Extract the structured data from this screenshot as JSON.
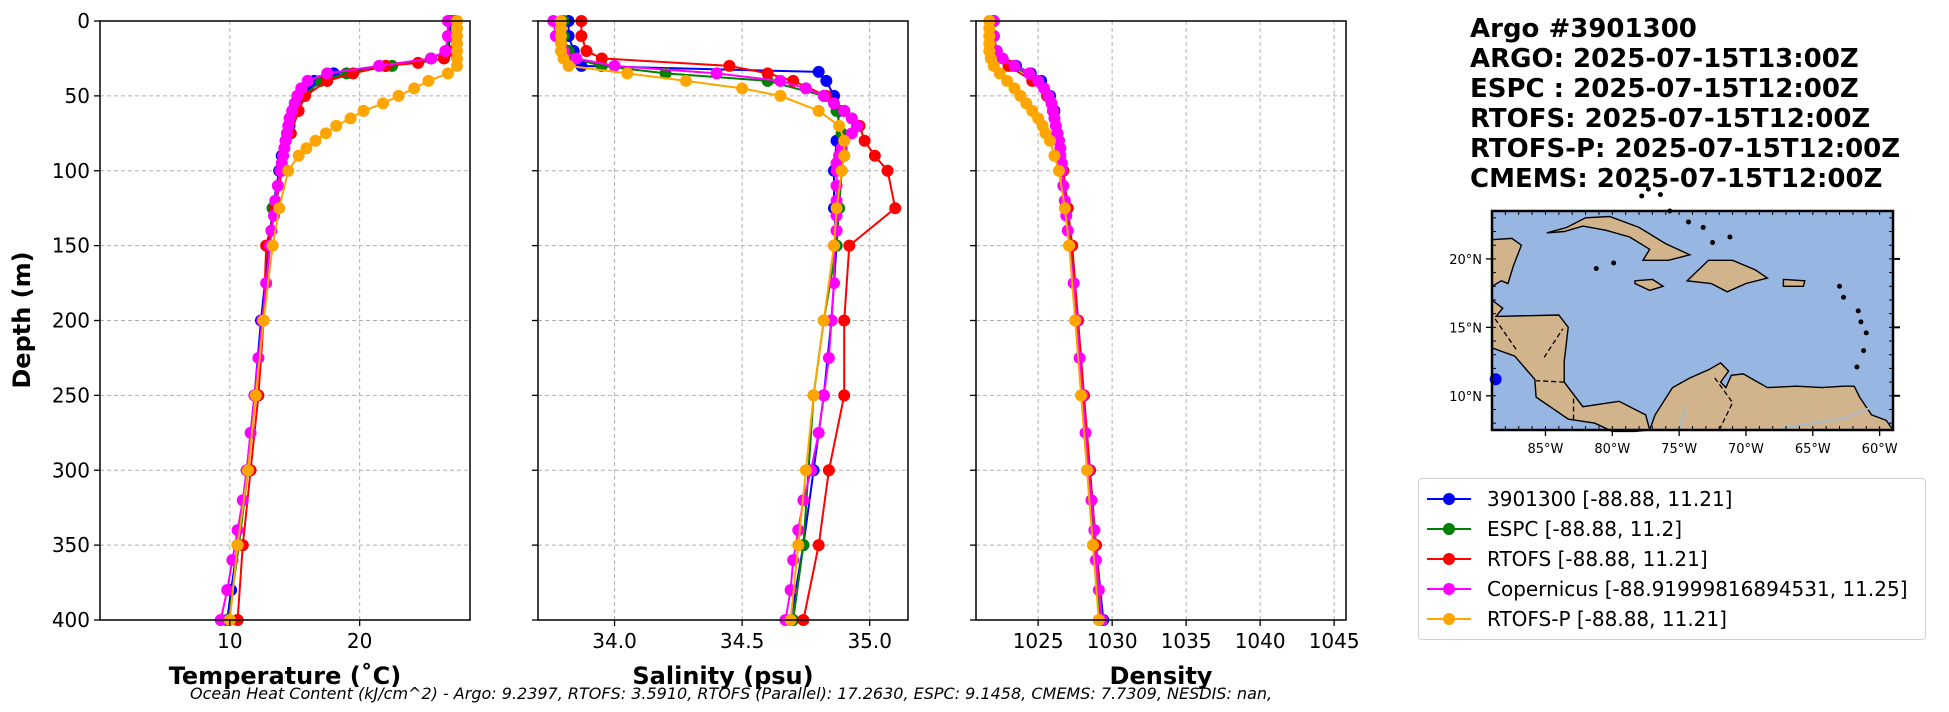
{
  "info": {
    "title": "Argo #3901300",
    "lines": [
      "ARGO: 2025-07-15T13:00Z",
      "ESPC : 2025-07-15T12:00Z",
      "RTOFS: 2025-07-15T12:00Z",
      "RTOFS-P: 2025-07-15T12:00Z",
      "CMEMS: 2025-07-15T12:00Z"
    ]
  },
  "ohc_text": "Ocean Heat Content (kJ/cm^2) - Argo: 9.2397,  RTOFS: 3.5910,  RTOFS (Parallel): 17.2630,  ESPC: 9.1458,  CMEMS: 7.7309,  NESDIS: nan,",
  "legend": [
    {
      "label": "3901300 [-88.88, 11.21]",
      "color": "#0000ff"
    },
    {
      "label": "ESPC [-88.88, 11.2]",
      "color": "#008000"
    },
    {
      "label": "RTOFS [-88.88, 11.21]",
      "color": "#ff0000"
    },
    {
      "label": "Copernicus [-88.91999816894531, 11.25]",
      "color": "#ff00ff"
    },
    {
      "label": "RTOFS-P [-88.88, 11.21]",
      "color": "#ffa500"
    }
  ],
  "map": {
    "lat_ticks": [
      "20°N",
      "15°N",
      "10°N"
    ],
    "lon_ticks": [
      "85°W",
      "80°W",
      "75°W",
      "70°W",
      "65°W",
      "60°W"
    ],
    "ocean_color": "#97b6e1",
    "land_color": "#d2b48c",
    "argo_marker": {
      "lon": -88.88,
      "lat": 11.21
    }
  },
  "chart_data": [
    {
      "type": "line",
      "xlabel": "Temperature (˚C)",
      "ylabel": "Depth (m)",
      "xlim": [
        0,
        28.5
      ],
      "ylim": [
        400,
        0
      ],
      "xticks": [
        10,
        20
      ],
      "yticks": [
        0,
        50,
        100,
        150,
        200,
        250,
        300,
        350,
        400
      ],
      "grid": true,
      "series": [
        {
          "name": "3901300",
          "color": "#0000ff",
          "depth": [
            0,
            10,
            20,
            25,
            30,
            35,
            40,
            45,
            50,
            60,
            70,
            80,
            90,
            100,
            125,
            150,
            200,
            250,
            300,
            350,
            380,
            400
          ],
          "values": [
            27.0,
            27.0,
            26.8,
            25.5,
            22.0,
            18.0,
            16.5,
            16.0,
            15.6,
            15.0,
            14.6,
            14.3,
            14.0,
            13.8,
            13.3,
            13.0,
            12.4,
            11.9,
            11.3,
            10.6,
            10.1,
            9.8
          ]
        },
        {
          "name": "ESPC",
          "color": "#008000",
          "depth": [
            0,
            10,
            20,
            25,
            30,
            35,
            40,
            50,
            60,
            75,
            100,
            125,
            150,
            200,
            250,
            300,
            350,
            400
          ],
          "values": [
            26.9,
            26.9,
            26.7,
            25.5,
            22.5,
            19.0,
            17.0,
            15.7,
            15.2,
            14.6,
            13.9,
            13.3,
            13.1,
            12.5,
            12.0,
            11.4,
            10.7,
            9.9
          ]
        },
        {
          "name": "RTOFS",
          "color": "#ff0000",
          "depth": [
            0,
            10,
            20,
            25,
            28,
            30,
            35,
            40,
            50,
            60,
            75,
            100,
            125,
            150,
            200,
            250,
            300,
            350,
            400
          ],
          "values": [
            27.3,
            27.3,
            27.1,
            26.5,
            24.5,
            22.0,
            19.5,
            17.5,
            15.8,
            15.3,
            14.7,
            14.0,
            13.5,
            12.8,
            12.6,
            12.2,
            11.6,
            11.0,
            10.6
          ]
        },
        {
          "name": "Copernicus",
          "color": "#ff00ff",
          "depth": [
            0,
            10,
            20,
            25,
            30,
            35,
            40,
            45,
            50,
            55,
            60,
            65,
            70,
            75,
            80,
            85,
            90,
            95,
            100,
            110,
            120,
            130,
            140,
            150,
            175,
            200,
            225,
            250,
            275,
            300,
            320,
            340,
            360,
            380,
            400
          ],
          "values": [
            26.8,
            26.8,
            26.6,
            25.5,
            21.5,
            17.5,
            16.0,
            15.5,
            15.2,
            15.0,
            14.8,
            14.6,
            14.5,
            14.4,
            14.3,
            14.2,
            14.1,
            14.0,
            13.9,
            13.7,
            13.5,
            13.4,
            13.2,
            13.1,
            12.8,
            12.5,
            12.2,
            11.9,
            11.6,
            11.3,
            11.0,
            10.6,
            10.2,
            9.8,
            9.3
          ]
        },
        {
          "name": "RTOFS-P",
          "color": "#ffa500",
          "depth": [
            0,
            5,
            10,
            15,
            20,
            25,
            30,
            35,
            40,
            45,
            50,
            55,
            60,
            65,
            70,
            75,
            80,
            85,
            90,
            100,
            125,
            150,
            200,
            250,
            300,
            350,
            400
          ],
          "values": [
            27.5,
            27.5,
            27.5,
            27.5,
            27.5,
            27.5,
            27.5,
            26.8,
            25.3,
            24.2,
            23.0,
            21.8,
            20.3,
            19.3,
            18.2,
            17.4,
            16.6,
            15.9,
            15.3,
            14.5,
            13.8,
            13.3,
            12.6,
            12.0,
            11.4,
            10.6,
            10.0
          ]
        }
      ]
    },
    {
      "type": "line",
      "xlabel": "Salinity (psu)",
      "ylim": [
        400,
        0
      ],
      "xlim": [
        33.7,
        35.15
      ],
      "xticks": [
        34.0,
        34.5,
        35.0
      ],
      "xticklabels": [
        "34.0",
        "34.5",
        "35.0"
      ],
      "grid": true,
      "series": [
        {
          "name": "3901300",
          "color": "#0000ff",
          "depth": [
            0,
            10,
            20,
            30,
            34,
            40,
            50,
            60,
            80,
            100,
            125,
            150,
            200,
            250,
            300,
            350,
            400
          ],
          "values": [
            33.82,
            33.82,
            33.84,
            33.87,
            34.8,
            34.83,
            34.86,
            34.88,
            34.87,
            34.86,
            34.86,
            34.87,
            34.85,
            34.82,
            34.78,
            34.74,
            34.69
          ]
        },
        {
          "name": "ESPC",
          "color": "#008000",
          "depth": [
            0,
            10,
            20,
            25,
            30,
            35,
            40,
            50,
            60,
            75,
            90,
            100,
            125,
            150,
            200,
            250,
            300,
            350,
            400
          ],
          "values": [
            33.8,
            33.8,
            33.82,
            33.84,
            33.95,
            34.2,
            34.6,
            34.82,
            34.87,
            34.89,
            34.9,
            34.89,
            34.88,
            34.87,
            34.82,
            34.78,
            34.76,
            34.74,
            34.7
          ]
        },
        {
          "name": "RTOFS",
          "color": "#ff0000",
          "depth": [
            0,
            10,
            20,
            25,
            30,
            35,
            40,
            50,
            60,
            70,
            80,
            90,
            100,
            125,
            150,
            200,
            250,
            300,
            350,
            400
          ],
          "values": [
            33.87,
            33.87,
            33.89,
            33.95,
            34.45,
            34.6,
            34.7,
            34.83,
            34.9,
            34.96,
            34.98,
            35.02,
            35.07,
            35.1,
            34.92,
            34.9,
            34.9,
            34.84,
            34.8,
            34.74
          ]
        },
        {
          "name": "Copernicus",
          "color": "#ff00ff",
          "depth": [
            0,
            10,
            20,
            25,
            30,
            35,
            40,
            45,
            50,
            55,
            60,
            65,
            70,
            75,
            80,
            85,
            90,
            95,
            100,
            110,
            120,
            130,
            140,
            150,
            175,
            200,
            225,
            250,
            275,
            300,
            320,
            340,
            360,
            380,
            400
          ],
          "values": [
            33.76,
            33.77,
            33.8,
            33.85,
            34.0,
            34.4,
            34.65,
            34.75,
            34.82,
            34.86,
            34.9,
            34.93,
            34.95,
            34.93,
            34.9,
            34.89,
            34.88,
            34.87,
            34.87,
            34.87,
            34.87,
            34.87,
            34.87,
            34.86,
            34.86,
            34.85,
            34.84,
            34.82,
            34.8,
            34.77,
            34.74,
            34.72,
            34.7,
            34.69,
            34.67
          ]
        },
        {
          "name": "RTOFS-P",
          "color": "#ffa500",
          "depth": [
            0,
            5,
            10,
            15,
            20,
            25,
            30,
            35,
            40,
            45,
            50,
            60,
            70,
            80,
            90,
            100,
            125,
            150,
            200,
            250,
            300,
            350,
            400
          ],
          "values": [
            33.79,
            33.79,
            33.79,
            33.79,
            33.79,
            33.8,
            33.82,
            34.05,
            34.28,
            34.5,
            34.65,
            34.8,
            34.88,
            34.9,
            34.9,
            34.89,
            34.87,
            34.86,
            34.82,
            34.78,
            34.75,
            34.72,
            34.69
          ]
        }
      ]
    },
    {
      "type": "line",
      "xlabel": "Density",
      "ylim": [
        400,
        0
      ],
      "xlim": [
        1020.8,
        1045.8
      ],
      "xticks": [
        1025,
        1030,
        1035,
        1040,
        1045
      ],
      "grid": true,
      "series": [
        {
          "name": "3901300",
          "color": "#0000ff",
          "depth": [
            0,
            10,
            20,
            30,
            35,
            40,
            50,
            60,
            80,
            100,
            125,
            150,
            200,
            250,
            300,
            350,
            400
          ],
          "values": [
            1022.0,
            1022.0,
            1022.2,
            1023.5,
            1024.5,
            1025.2,
            1025.8,
            1026.1,
            1026.4,
            1026.6,
            1026.9,
            1027.2,
            1027.6,
            1028.0,
            1028.5,
            1028.9,
            1029.4
          ]
        },
        {
          "name": "ESPC",
          "color": "#008000",
          "depth": [
            0,
            10,
            20,
            30,
            40,
            50,
            60,
            75,
            100,
            125,
            150,
            200,
            250,
            300,
            350,
            400
          ],
          "values": [
            1022.0,
            1022.0,
            1022.2,
            1023.3,
            1025.0,
            1025.7,
            1026.0,
            1026.3,
            1026.6,
            1026.9,
            1027.2,
            1027.6,
            1028.0,
            1028.4,
            1028.8,
            1029.2
          ]
        },
        {
          "name": "RTOFS",
          "color": "#ff0000",
          "depth": [
            0,
            10,
            20,
            30,
            40,
            50,
            60,
            75,
            100,
            125,
            150,
            200,
            250,
            300,
            350,
            400
          ],
          "values": [
            1022.0,
            1022.0,
            1022.1,
            1023.0,
            1024.6,
            1025.6,
            1026.0,
            1026.3,
            1026.7,
            1027.0,
            1027.3,
            1027.7,
            1028.1,
            1028.5,
            1028.9,
            1029.3
          ]
        },
        {
          "name": "Copernicus",
          "color": "#ff00ff",
          "depth": [
            0,
            10,
            20,
            25,
            30,
            35,
            40,
            45,
            50,
            55,
            60,
            65,
            70,
            75,
            80,
            85,
            90,
            95,
            100,
            110,
            120,
            130,
            140,
            150,
            175,
            200,
            225,
            250,
            275,
            300,
            320,
            340,
            360,
            380,
            400
          ],
          "values": [
            1022.0,
            1022.0,
            1022.2,
            1022.6,
            1023.4,
            1024.4,
            1025.0,
            1025.4,
            1025.7,
            1025.9,
            1026.0,
            1026.1,
            1026.2,
            1026.3,
            1026.4,
            1026.5,
            1026.5,
            1026.6,
            1026.6,
            1026.7,
            1026.8,
            1026.9,
            1027.0,
            1027.1,
            1027.4,
            1027.6,
            1027.8,
            1028.0,
            1028.2,
            1028.4,
            1028.6,
            1028.8,
            1028.9,
            1029.1,
            1029.3
          ]
        },
        {
          "name": "RTOFS-P",
          "color": "#ffa500",
          "depth": [
            0,
            5,
            10,
            15,
            20,
            25,
            30,
            35,
            40,
            45,
            50,
            55,
            60,
            65,
            70,
            75,
            80,
            90,
            100,
            125,
            150,
            200,
            250,
            300,
            350,
            400
          ],
          "values": [
            1021.7,
            1021.7,
            1021.7,
            1021.7,
            1021.7,
            1021.8,
            1022.0,
            1022.4,
            1022.9,
            1023.4,
            1023.8,
            1024.2,
            1024.6,
            1025.0,
            1025.3,
            1025.5,
            1025.8,
            1026.1,
            1026.4,
            1026.8,
            1027.1,
            1027.5,
            1027.9,
            1028.3,
            1028.7,
            1029.1
          ]
        }
      ]
    }
  ]
}
